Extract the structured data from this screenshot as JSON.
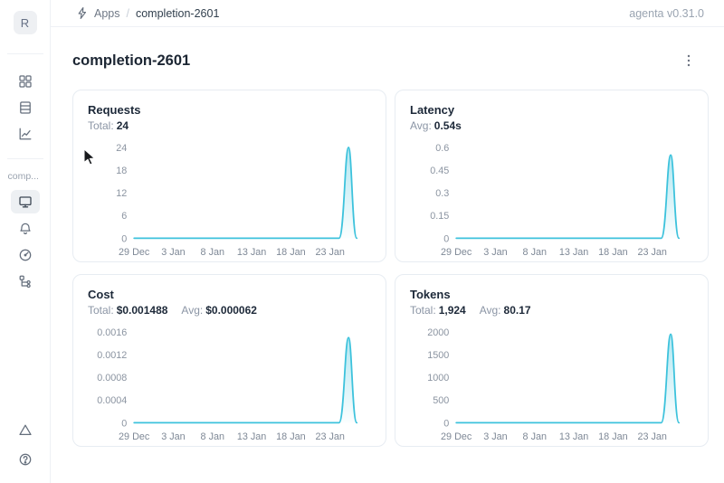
{
  "topbar": {
    "breadcrumb": {
      "section": "Apps",
      "separator": "/",
      "current": "completion-2601"
    },
    "version": "agenta v0.31.0"
  },
  "sidebar": {
    "workspace_initial": "R",
    "app_label": "comp...",
    "icons_top": [
      "apps-grid-icon",
      "table-icon",
      "line-chart-icon"
    ],
    "icons_app": [
      "monitor-icon",
      "bell-icon",
      "gauge-icon",
      "hierarchy-icon"
    ],
    "active_icon": "monitor-icon",
    "icons_bottom": [
      "alert-triangle-icon",
      "help-icon"
    ]
  },
  "page": {
    "title": "completion-2601"
  },
  "chart_data": [
    {
      "id": "requests",
      "type": "area",
      "title": "Requests",
      "stats": [
        {
          "label": "Total:",
          "value": "24"
        }
      ],
      "line_color": "#3cc2dc",
      "ylim": [
        0,
        24
      ],
      "y_ticks": [
        "0",
        "6",
        "12",
        "18",
        "24"
      ],
      "x_ticks": [
        "29 Dec",
        "3 Jan",
        "8 Jan",
        "13 Jan",
        "18 Jan",
        "23 Jan"
      ],
      "series": [
        {
          "name": "Requests",
          "baseline": 0,
          "peak_value": 24,
          "peak_x": "~25 Jan",
          "shape": "flat at 0 across range with a single narrow spike near the right edge"
        }
      ]
    },
    {
      "id": "latency",
      "type": "area",
      "title": "Latency",
      "stats": [
        {
          "label": "Avg:",
          "value": "0.54s"
        }
      ],
      "line_color": "#3cc2dc",
      "ylim": [
        0,
        0.6
      ],
      "y_ticks": [
        "0",
        "0.15",
        "0.3",
        "0.45",
        "0.6"
      ],
      "x_ticks": [
        "29 Dec",
        "3 Jan",
        "8 Jan",
        "13 Jan",
        "18 Jan",
        "23 Jan"
      ],
      "series": [
        {
          "name": "Latency",
          "baseline": 0,
          "peak_value": 0.55,
          "peak_x": "~25 Jan",
          "shape": "flat at 0 across range with a single narrow spike near the right edge"
        }
      ]
    },
    {
      "id": "cost",
      "type": "area",
      "title": "Cost",
      "stats": [
        {
          "label": "Total:",
          "value": "$0.001488"
        },
        {
          "label": "Avg:",
          "value": "$0.000062"
        }
      ],
      "line_color": "#3cc2dc",
      "ylim": [
        0,
        0.0016
      ],
      "y_ticks": [
        "0",
        "0.0004",
        "0.0008",
        "0.0012",
        "0.0016"
      ],
      "x_ticks": [
        "29 Dec",
        "3 Jan",
        "8 Jan",
        "13 Jan",
        "18 Jan",
        "23 Jan"
      ],
      "series": [
        {
          "name": "Cost",
          "baseline": 0,
          "peak_value": 0.0015,
          "peak_x": "~25 Jan",
          "shape": "flat at 0 across range with a single narrow spike near the right edge"
        }
      ]
    },
    {
      "id": "tokens",
      "type": "area",
      "title": "Tokens",
      "stats": [
        {
          "label": "Total:",
          "value": "1,924"
        },
        {
          "label": "Avg:",
          "value": "80.17"
        }
      ],
      "line_color": "#3cc2dc",
      "ylim": [
        0,
        2000
      ],
      "y_ticks": [
        "0",
        "500",
        "1000",
        "1500",
        "2000"
      ],
      "x_ticks": [
        "29 Dec",
        "3 Jan",
        "8 Jan",
        "13 Jan",
        "18 Jan",
        "23 Jan"
      ],
      "series": [
        {
          "name": "Tokens",
          "baseline": 0,
          "peak_value": 1950,
          "peak_x": "~25 Jan",
          "shape": "flat at 0 across range with a single narrow spike near the right edge"
        }
      ]
    }
  ]
}
